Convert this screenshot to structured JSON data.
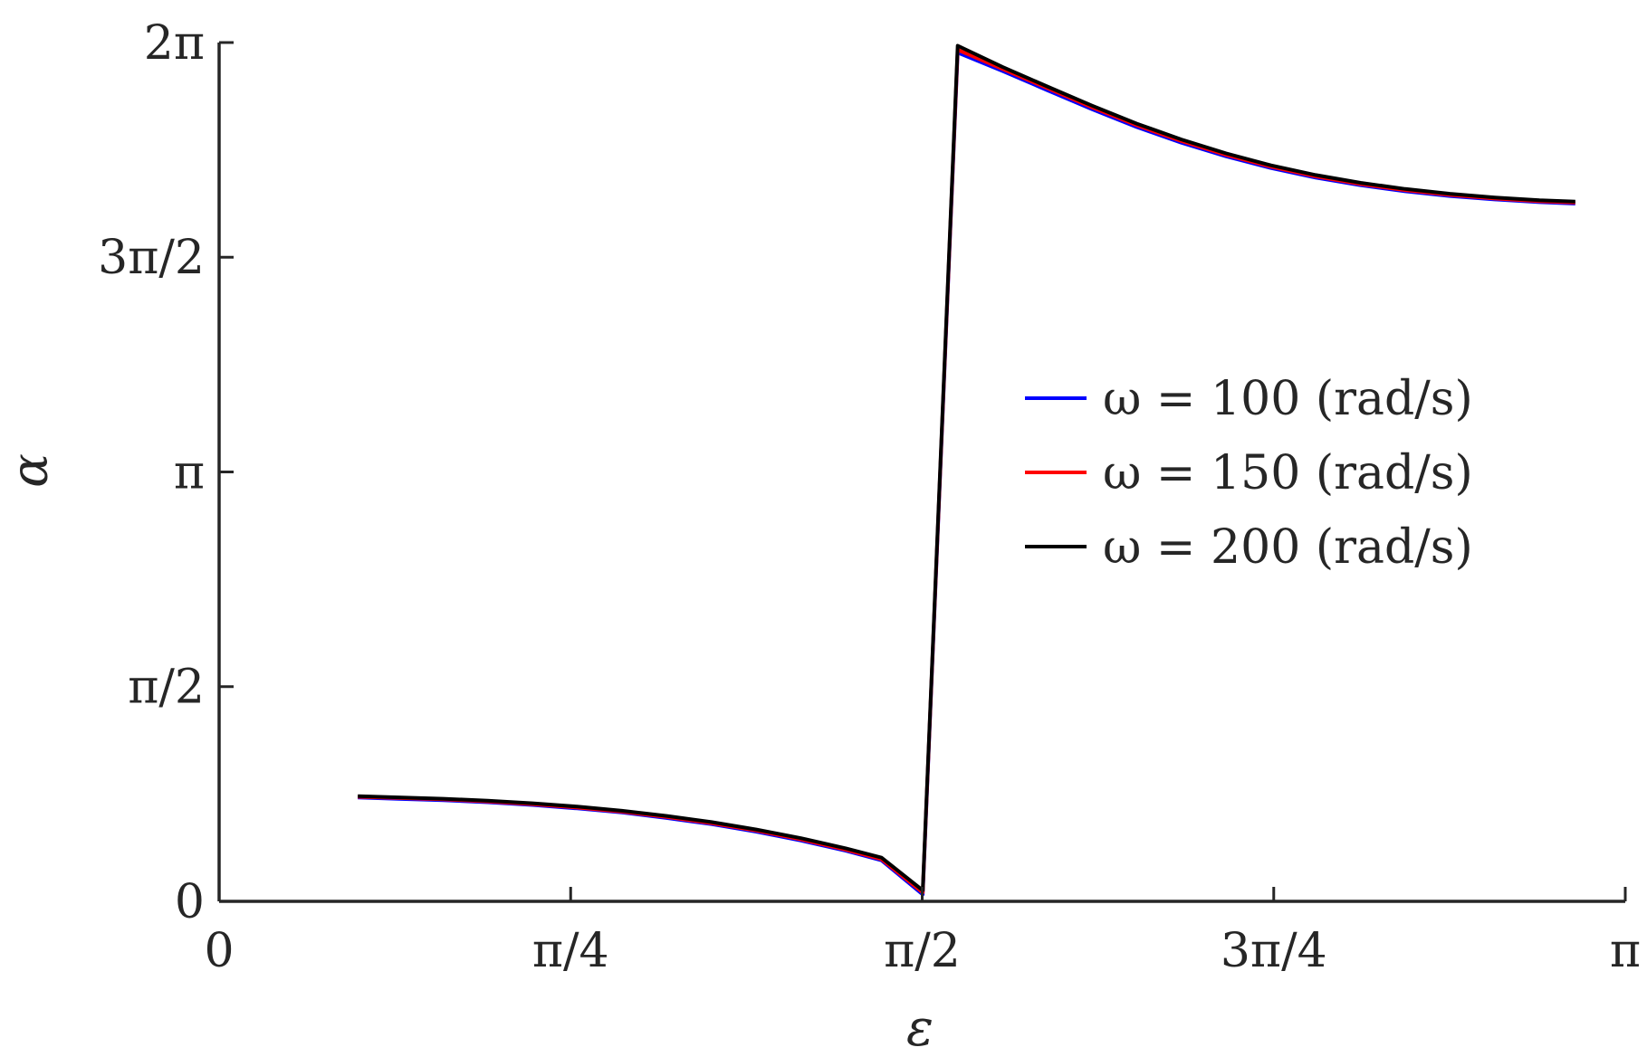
{
  "chart_data": {
    "type": "line",
    "xlabel": "ε",
    "ylabel": "α",
    "xlim": [
      0,
      3.14159
    ],
    "ylim": [
      0,
      6.28319
    ],
    "xticks": [
      {
        "value": 0,
        "label": "0"
      },
      {
        "value": 0.7854,
        "label": "π/4"
      },
      {
        "value": 1.5708,
        "label": "π/2"
      },
      {
        "value": 2.3562,
        "label": "3π/4"
      },
      {
        "value": 3.14159,
        "label": "π"
      }
    ],
    "yticks": [
      {
        "value": 0,
        "label": "0"
      },
      {
        "value": 1.5708,
        "label": "π/2"
      },
      {
        "value": 3.14159,
        "label": "π"
      },
      {
        "value": 4.7124,
        "label": "3π/2"
      },
      {
        "value": 6.28319,
        "label": "2π"
      }
    ],
    "grid": false,
    "legend_position": "right",
    "series": [
      {
        "name": "ω = 100 (rad/s)",
        "color": "#0000ff",
        "x": [
          0.31,
          0.4,
          0.5,
          0.6,
          0.7,
          0.8,
          0.9,
          1.0,
          1.1,
          1.2,
          1.3,
          1.4,
          1.48,
          1.572,
          1.65,
          1.75,
          1.85,
          1.95,
          2.05,
          2.15,
          2.25,
          2.35,
          2.45,
          2.55,
          2.65,
          2.75,
          2.85,
          2.95,
          3.03
        ],
        "y": [
          0.76,
          0.75,
          0.74,
          0.725,
          0.705,
          0.68,
          0.65,
          0.61,
          0.565,
          0.51,
          0.445,
          0.37,
          0.3,
          0.05,
          6.21,
          6.075,
          5.935,
          5.795,
          5.665,
          5.55,
          5.45,
          5.365,
          5.295,
          5.24,
          5.195,
          5.16,
          5.135,
          5.115,
          5.105
        ]
      },
      {
        "name": "ω = 150 (rad/s)",
        "color": "#ff0000",
        "x": [
          0.31,
          0.4,
          0.5,
          0.6,
          0.7,
          0.8,
          0.9,
          1.0,
          1.1,
          1.2,
          1.3,
          1.4,
          1.48,
          1.572,
          1.65,
          1.75,
          1.85,
          1.95,
          2.05,
          2.15,
          2.25,
          2.35,
          2.45,
          2.55,
          2.65,
          2.75,
          2.85,
          2.95,
          3.03
        ],
        "y": [
          0.765,
          0.756,
          0.746,
          0.731,
          0.711,
          0.686,
          0.656,
          0.617,
          0.572,
          0.518,
          0.453,
          0.378,
          0.308,
          0.065,
          6.23,
          6.09,
          5.95,
          5.81,
          5.678,
          5.562,
          5.461,
          5.375,
          5.304,
          5.248,
          5.203,
          5.168,
          5.142,
          5.122,
          5.112
        ]
      },
      {
        "name": "ω = 200 (rad/s)",
        "color": "#000000",
        "x": [
          0.31,
          0.4,
          0.5,
          0.6,
          0.7,
          0.8,
          0.9,
          1.0,
          1.1,
          1.2,
          1.3,
          1.4,
          1.48,
          1.572,
          1.65,
          1.75,
          1.85,
          1.95,
          2.05,
          2.15,
          2.25,
          2.35,
          2.45,
          2.55,
          2.65,
          2.75,
          2.85,
          2.95,
          3.03
        ],
        "y": [
          0.77,
          0.761,
          0.751,
          0.737,
          0.718,
          0.693,
          0.663,
          0.625,
          0.58,
          0.526,
          0.462,
          0.388,
          0.32,
          0.08,
          6.26,
          6.105,
          5.962,
          5.822,
          5.69,
          5.574,
          5.472,
          5.385,
          5.314,
          5.257,
          5.212,
          5.177,
          5.15,
          5.13,
          5.12
        ]
      }
    ]
  }
}
